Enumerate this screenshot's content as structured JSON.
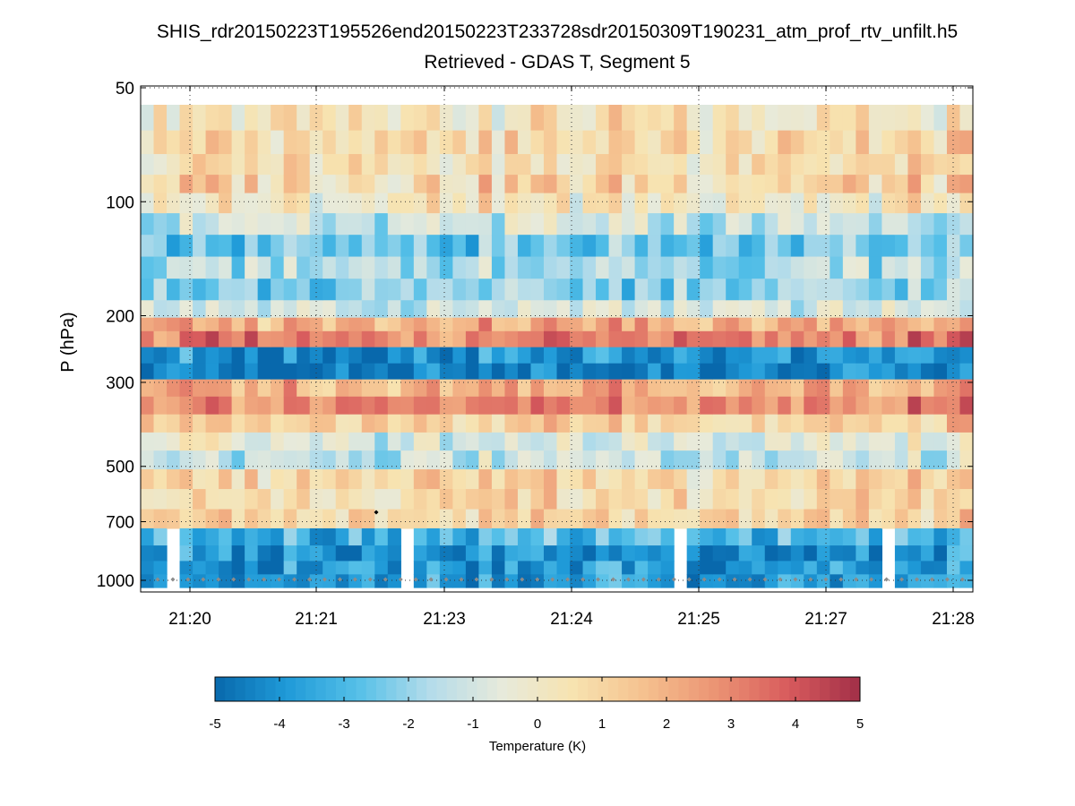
{
  "chart_data": {
    "type": "heatmap",
    "title": "SHIS_rdr20150223T195526end20150223T233728sdr20150309T190231_atm_prof_rtv_unfilt.h5",
    "subtitle": "Retrieved - GDAS T, Segment 5",
    "xlabel": "",
    "ylabel": "P (hPa)",
    "y_scale": "log",
    "y_reversed": true,
    "ylim": [
      1100,
      50
    ],
    "y_ticks": [
      50,
      100,
      200,
      300,
      500,
      700,
      1000
    ],
    "y_tick_labels": [
      "50",
      "100",
      "200",
      "300",
      "500",
      "700",
      "1000"
    ],
    "x_tick_labels": [
      "21:20",
      "21:21",
      "21:23",
      "21:24",
      "21:25",
      "21:27",
      "21:28"
    ],
    "grid": true,
    "n_profiles": 64,
    "pressure_levels": [
      60,
      70,
      80,
      90,
      100,
      115,
      130,
      150,
      170,
      195,
      210,
      230,
      255,
      280,
      310,
      345,
      385,
      430,
      480,
      540,
      610,
      690,
      770,
      850,
      930,
      1000
    ],
    "layer_profile_K": [
      0.4,
      0.8,
      0.6,
      1.0,
      0.2,
      -1.2,
      -2.6,
      -1.6,
      -2.2,
      -1.0,
      2.0,
      3.0,
      -4.0,
      -4.4,
      2.2,
      3.0,
      1.2,
      -0.8,
      -1.2,
      0.8,
      0.9,
      1.0,
      -3.0,
      -4.0,
      -3.8,
      -3.8
    ],
    "missing_data_columns": [
      2,
      20,
      41,
      57
    ],
    "colorbar": {
      "label": "Temperature (K)",
      "min": -5,
      "max": 5,
      "ticks": [
        "-5",
        "-4",
        "-3",
        "-2",
        "-1",
        "0",
        "1",
        "2",
        "3",
        "4",
        "5"
      ],
      "colormap": [
        "#0868ac",
        "#1f9ad8",
        "#55c0e8",
        "#b4dcea",
        "#e7eadb",
        "#f7e3b0",
        "#f5c08e",
        "#eb9373",
        "#d85b5d",
        "#a12f48"
      ]
    }
  }
}
